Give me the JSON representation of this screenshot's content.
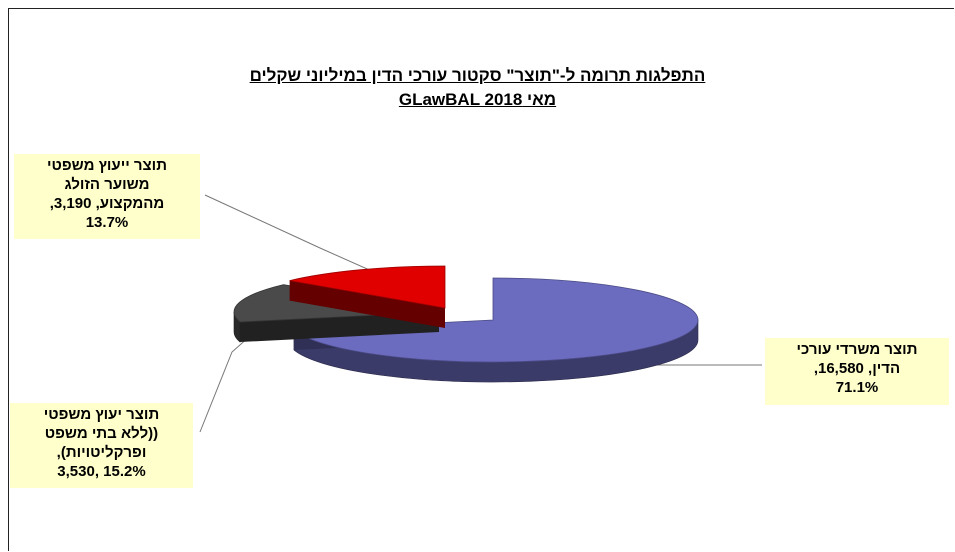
{
  "chart_data": {
    "type": "pie",
    "title": "התפלגות תרומה ל-\"תוצר\" סקטור עורכי הדין  במיליוני שקלים",
    "subtitle": "מאי GLawBAL 2018",
    "slices": [
      {
        "lines": [
          "תוצר משרדי עורכי",
          "הדין, 16,580,",
          "71.1%"
        ],
        "value": 16580,
        "percent": 71.1,
        "color": "#6b6bbf"
      },
      {
        "lines": [
          "תוצר יעוץ משפטי",
          "((ללא בתי משפט",
          "ופרקליטויות),",
          "15.2% ,3,530"
        ],
        "value": 3530,
        "percent": 15.2,
        "color": "#4a4a4a"
      },
      {
        "lines": [
          "תוצר ייעוץ משפטי",
          "משוער הזולג",
          "מהמקצוע, 3,190,",
          "13.7%"
        ],
        "value": 3190,
        "percent": 13.7,
        "color": "#e00000"
      }
    ]
  }
}
